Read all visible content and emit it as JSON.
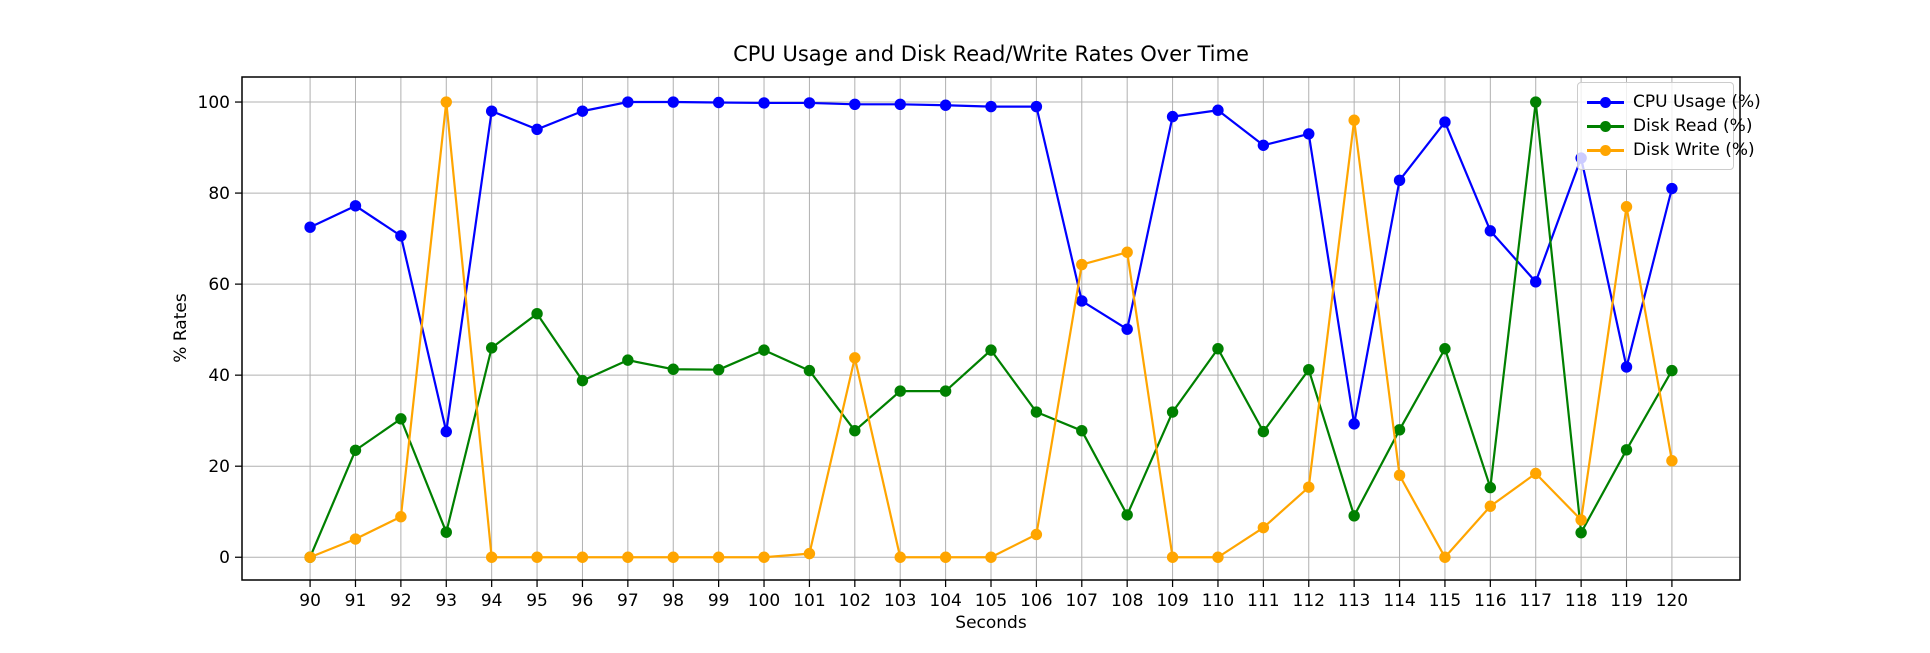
{
  "figure": {
    "background": "#ffffff"
  },
  "chart_data": {
    "type": "line",
    "title": "CPU Usage and Disk Read/Write Rates Over Time",
    "xlabel": "Seconds",
    "ylabel": "% Rates",
    "x": [
      90,
      91,
      92,
      93,
      94,
      95,
      96,
      97,
      98,
      99,
      100,
      101,
      102,
      103,
      104,
      105,
      106,
      107,
      108,
      109,
      110,
      111,
      112,
      113,
      114,
      115,
      116,
      117,
      118,
      119,
      120
    ],
    "series": [
      {
        "name": "CPU Usage (%)",
        "color": "#0000ff",
        "values": [
          72.5,
          77.2,
          70.6,
          27.6,
          98.0,
          94.0,
          98.0,
          100.0,
          100.0,
          99.9,
          99.8,
          99.8,
          99.5,
          99.5,
          99.3,
          99.0,
          99.0,
          56.3,
          50.1,
          96.8,
          98.2,
          90.5,
          93.0,
          29.3,
          82.8,
          95.6,
          71.7,
          60.5,
          87.7,
          41.8,
          81.0
        ]
      },
      {
        "name": "Disk Read (%)",
        "color": "#008000",
        "values": [
          0.0,
          23.5,
          30.4,
          5.5,
          46.0,
          53.5,
          38.8,
          43.3,
          41.3,
          41.2,
          45.5,
          41.0,
          27.8,
          36.5,
          36.5,
          45.5,
          31.9,
          27.8,
          9.3,
          31.9,
          45.8,
          27.6,
          41.2,
          9.1,
          28.0,
          45.8,
          15.3,
          100.0,
          5.4,
          23.6,
          41.0
        ]
      },
      {
        "name": "Disk Write (%)",
        "color": "#ffa500",
        "values": [
          0.0,
          4.0,
          8.9,
          100.0,
          0.0,
          0.0,
          0.0,
          0.0,
          0.0,
          0.0,
          0.0,
          0.8,
          43.8,
          0.0,
          0.0,
          0.0,
          5.0,
          64.3,
          67.0,
          0.0,
          0.0,
          6.5,
          15.4,
          96.0,
          18.0,
          0.0,
          11.2,
          18.4,
          8.2,
          77.0,
          21.2
        ]
      }
    ],
    "xticks": [
      90,
      91,
      92,
      93,
      94,
      95,
      96,
      97,
      98,
      99,
      100,
      101,
      102,
      103,
      104,
      105,
      106,
      107,
      108,
      109,
      110,
      111,
      112,
      113,
      114,
      115,
      116,
      117,
      118,
      119,
      120
    ],
    "yticks": [
      0,
      20,
      40,
      60,
      80,
      100
    ],
    "xlim": [
      88.5,
      121.5
    ],
    "ylim": [
      -5,
      105.5
    ],
    "grid": true,
    "grid_color": "#b0b0b0",
    "axis_color": "#000000",
    "legend_position": "upper right",
    "marker": "o"
  }
}
